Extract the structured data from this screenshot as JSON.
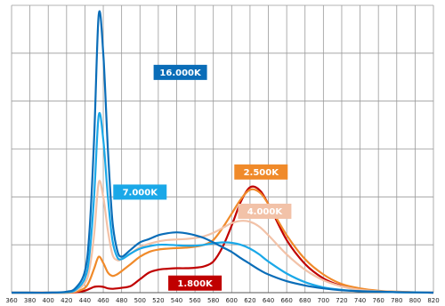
{
  "chart_data": {
    "type": "line",
    "title": "",
    "xlabel": "",
    "ylabel": "",
    "xlim": [
      360,
      820
    ],
    "ylim": [
      0,
      6
    ],
    "grid": true,
    "legend": "none",
    "x_ticks": [
      360,
      380,
      400,
      420,
      440,
      460,
      480,
      500,
      520,
      540,
      560,
      580,
      600,
      620,
      640,
      660,
      680,
      700,
      720,
      740,
      760,
      780,
      800,
      820
    ],
    "series": [
      {
        "name": "16.000K",
        "color": "#0a6db8",
        "label_bg": "#0a6db8",
        "label_at": [
          544,
          4.6
        ],
        "x": [
          360,
          380,
          400,
          420,
          430,
          440,
          445,
          450,
          455,
          460,
          465,
          470,
          475,
          480,
          490,
          500,
          510,
          520,
          530,
          540,
          550,
          560,
          570,
          580,
          590,
          600,
          610,
          620,
          630,
          640,
          660,
          680,
          700,
          720,
          740,
          760,
          780,
          800,
          820
        ],
        "y": [
          0,
          0,
          0,
          0.02,
          0.1,
          0.45,
          1.3,
          3.2,
          5.8,
          5.0,
          3.0,
          1.5,
          0.9,
          0.75,
          0.9,
          1.05,
          1.12,
          1.2,
          1.24,
          1.26,
          1.24,
          1.2,
          1.14,
          1.05,
          0.95,
          0.85,
          0.72,
          0.6,
          0.48,
          0.38,
          0.24,
          0.15,
          0.09,
          0.05,
          0.03,
          0.02,
          0.01,
          0.005,
          0
        ]
      },
      {
        "name": "7.000K",
        "color": "#1aa8e8",
        "label_bg": "#1aa8e8",
        "label_at": [
          500,
          2.1
        ],
        "x": [
          360,
          380,
          400,
          420,
          430,
          440,
          445,
          450,
          455,
          460,
          465,
          470,
          475,
          480,
          490,
          500,
          510,
          520,
          530,
          540,
          550,
          560,
          570,
          580,
          590,
          600,
          610,
          620,
          630,
          640,
          660,
          680,
          700,
          720,
          740,
          760,
          780,
          800,
          820
        ],
        "y": [
          0,
          0,
          0,
          0.01,
          0.06,
          0.3,
          0.8,
          2.0,
          3.7,
          3.2,
          2.0,
          1.1,
          0.75,
          0.7,
          0.82,
          0.92,
          0.97,
          1.0,
          1.0,
          0.99,
          0.98,
          0.98,
          1.0,
          1.03,
          1.05,
          1.04,
          1.0,
          0.92,
          0.8,
          0.65,
          0.4,
          0.22,
          0.11,
          0.06,
          0.03,
          0.02,
          0.01,
          0.005,
          0
        ]
      },
      {
        "name": "4.000K",
        "color": "#f2c2a8",
        "label_bg": "#f2c2a8",
        "label_dark": true,
        "label_at": [
          636,
          1.7
        ],
        "x": [
          360,
          380,
          400,
          420,
          430,
          440,
          445,
          450,
          455,
          460,
          465,
          470,
          475,
          480,
          490,
          500,
          510,
          520,
          530,
          540,
          550,
          560,
          570,
          580,
          590,
          600,
          610,
          620,
          630,
          640,
          660,
          680,
          700,
          720,
          740,
          760,
          780,
          800,
          820
        ],
        "y": [
          0,
          0,
          0,
          0.01,
          0.04,
          0.2,
          0.5,
          1.2,
          2.3,
          2.0,
          1.3,
          0.8,
          0.68,
          0.7,
          0.82,
          0.95,
          1.02,
          1.07,
          1.1,
          1.11,
          1.12,
          1.14,
          1.18,
          1.25,
          1.35,
          1.45,
          1.5,
          1.48,
          1.38,
          1.2,
          0.8,
          0.48,
          0.26,
          0.13,
          0.06,
          0.03,
          0.015,
          0.006,
          0
        ]
      },
      {
        "name": "2.500K",
        "color": "#f08a2a",
        "label_bg": "#f08a2a",
        "label_at": [
          632,
          2.52
        ],
        "x": [
          360,
          380,
          400,
          420,
          430,
          440,
          445,
          450,
          455,
          460,
          465,
          470,
          475,
          480,
          490,
          500,
          510,
          520,
          530,
          540,
          550,
          560,
          570,
          580,
          590,
          600,
          610,
          620,
          630,
          640,
          660,
          680,
          700,
          720,
          740,
          760,
          780,
          800,
          820
        ],
        "y": [
          0,
          0,
          0,
          0,
          0.02,
          0.1,
          0.25,
          0.5,
          0.75,
          0.62,
          0.42,
          0.35,
          0.38,
          0.45,
          0.6,
          0.75,
          0.85,
          0.9,
          0.92,
          0.93,
          0.94,
          0.96,
          1.0,
          1.1,
          1.35,
          1.65,
          1.95,
          2.15,
          2.1,
          1.85,
          1.2,
          0.7,
          0.38,
          0.18,
          0.09,
          0.04,
          0.02,
          0.008,
          0
        ]
      },
      {
        "name": "1.800K",
        "color": "#c00000",
        "label_bg": "#c00000",
        "label_at": [
          560,
          0.2
        ],
        "x": [
          360,
          380,
          400,
          420,
          430,
          440,
          445,
          450,
          455,
          460,
          465,
          470,
          475,
          480,
          490,
          500,
          510,
          520,
          530,
          540,
          550,
          560,
          570,
          580,
          590,
          600,
          610,
          620,
          630,
          640,
          660,
          680,
          700,
          720,
          740,
          760,
          780,
          800,
          820
        ],
        "y": [
          0,
          0,
          0,
          0,
          0.01,
          0.04,
          0.08,
          0.12,
          0.13,
          0.12,
          0.09,
          0.08,
          0.09,
          0.1,
          0.14,
          0.28,
          0.42,
          0.48,
          0.5,
          0.51,
          0.51,
          0.52,
          0.55,
          0.65,
          0.95,
          1.4,
          1.9,
          2.2,
          2.15,
          1.85,
          1.1,
          0.6,
          0.3,
          0.14,
          0.07,
          0.03,
          0.015,
          0.006,
          0
        ]
      }
    ]
  }
}
